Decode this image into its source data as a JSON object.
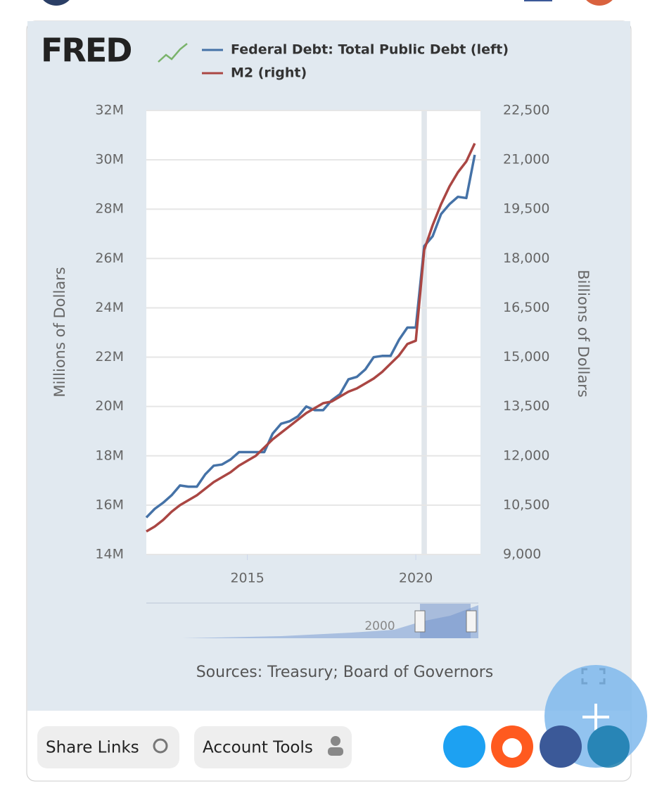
{
  "logo": "FRED",
  "chart_data": {
    "type": "line",
    "series": [
      {
        "name": "Federal Debt: Total Public Debt (left)",
        "color": "#4572a7",
        "axis": "y",
        "values": [
          15500000,
          15850000,
          16100000,
          16400000,
          16800000,
          16750000,
          16750000,
          17250000,
          17600000,
          17650000,
          17850000,
          18150000,
          18150000,
          18150000,
          18150000,
          18900000,
          19300000,
          19400000,
          19600000,
          20000000,
          19850000,
          19850000,
          20250000,
          20500000,
          21100000,
          21200000,
          21500000,
          22000000,
          22050000,
          22050000,
          22700000,
          23200000,
          23200000,
          26500000,
          26900000,
          27800000,
          28200000,
          28500000,
          28450000,
          30200000
        ]
      },
      {
        "name": "M2 (right)",
        "color": "#aa4643",
        "axis": "y2",
        "values": [
          9700,
          9850,
          10050,
          10300,
          10500,
          10650,
          10800,
          11000,
          11200,
          11350,
          11500,
          11700,
          11850,
          12000,
          12250,
          12500,
          12700,
          12900,
          13100,
          13300,
          13450,
          13600,
          13650,
          13800,
          13950,
          14050,
          14200,
          14350,
          14550,
          14800,
          15050,
          15400,
          15500,
          18260,
          19010,
          19650,
          20190,
          20620,
          20950,
          21500
        ]
      }
    ],
    "x": [
      2012,
      2012.25,
      2012.5,
      2012.75,
      2013,
      2013.25,
      2013.5,
      2013.75,
      2014,
      2014.25,
      2014.5,
      2014.75,
      2015,
      2015.25,
      2015.5,
      2015.75,
      2016,
      2016.25,
      2016.5,
      2016.75,
      2017,
      2017.25,
      2017.5,
      2017.75,
      2018,
      2018.25,
      2018.5,
      2018.75,
      2019,
      2019.25,
      2019.5,
      2019.75,
      2020,
      2020.25,
      2020.5,
      2020.75,
      2021,
      2021.25,
      2021.5,
      2021.75
    ],
    "xlim": [
      2012,
      2021.92
    ],
    "xticks": [
      2015,
      2020
    ],
    "ylim": [
      14000000,
      32000000
    ],
    "yticks": [
      {
        "value": 14000000,
        "label": "14M"
      },
      {
        "value": 16000000,
        "label": "16M"
      },
      {
        "value": 18000000,
        "label": "18M"
      },
      {
        "value": 20000000,
        "label": "20M"
      },
      {
        "value": 22000000,
        "label": "22M"
      },
      {
        "value": 24000000,
        "label": "24M"
      },
      {
        "value": 26000000,
        "label": "26M"
      },
      {
        "value": 28000000,
        "label": "28M"
      },
      {
        "value": 30000000,
        "label": "30M"
      },
      {
        "value": 32000000,
        "label": "32M"
      }
    ],
    "y2lim": [
      9000,
      22500
    ],
    "y2ticks": [
      {
        "value": 9000,
        "label": "9,000"
      },
      {
        "value": 10500,
        "label": "10,500"
      },
      {
        "value": 12000,
        "label": "12,000"
      },
      {
        "value": 13500,
        "label": "13,500"
      },
      {
        "value": 15000,
        "label": "15,000"
      },
      {
        "value": 16500,
        "label": "16,500"
      },
      {
        "value": 18000,
        "label": "18,000"
      },
      {
        "value": 19500,
        "label": "19,500"
      },
      {
        "value": 21000,
        "label": "21,000"
      },
      {
        "value": 22500,
        "label": "22,500"
      }
    ],
    "ylabel": "Millions of Dollars",
    "y2label": "Billions of Dollars",
    "recessions": [
      [
        2020.17,
        2020.33
      ]
    ],
    "grid": true,
    "navigator_label": "2000",
    "source": "Sources: Treasury; Board of Governors"
  },
  "buttons": [
    "Share Links",
    "Account Tools"
  ]
}
